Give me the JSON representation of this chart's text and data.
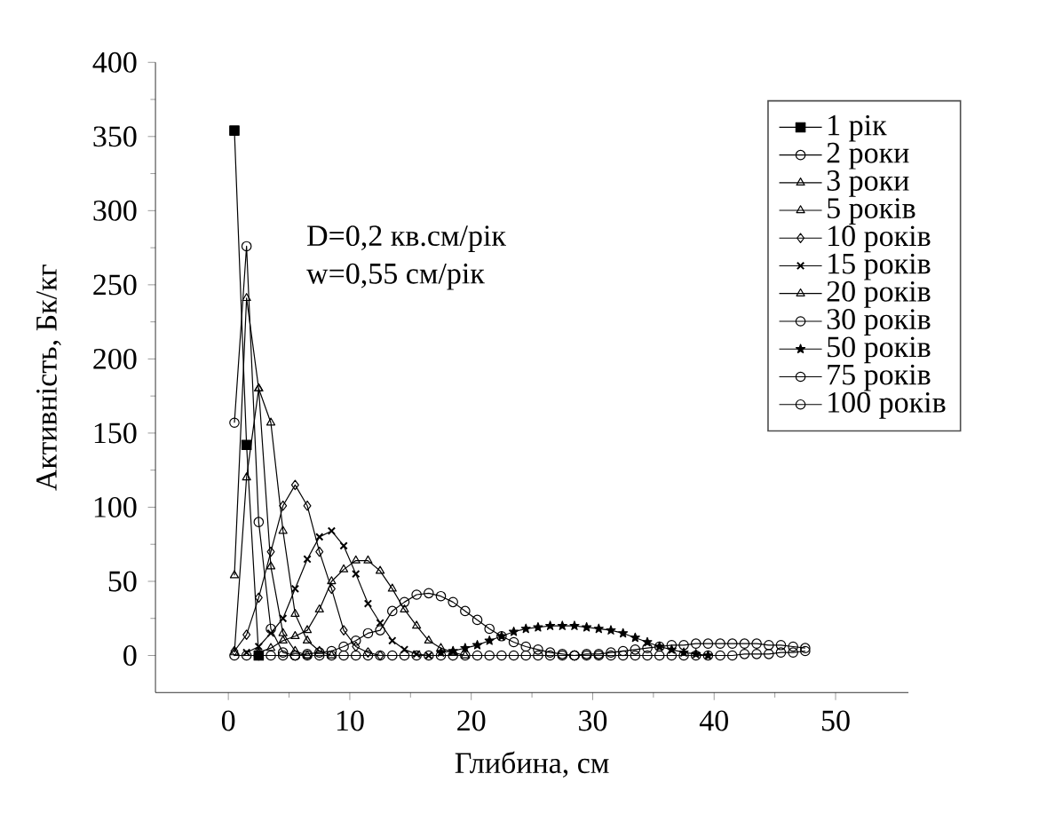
{
  "chart_data": {
    "type": "line",
    "xlabel": "Глибина, см",
    "ylabel": "Активність, Бк/кг",
    "annotations": [
      "D=0,2 кв.см/рік",
      "w=0,55 см/рік"
    ],
    "xlim": [
      -6,
      56
    ],
    "ylim": [
      -25,
      400
    ],
    "xticks": [
      0,
      10,
      20,
      30,
      40,
      50
    ],
    "yticks": [
      0,
      50,
      100,
      150,
      200,
      250,
      300,
      350,
      400
    ],
    "legend": "top right",
    "grid": false,
    "line_style": "solid",
    "x": [
      0.5,
      1.5,
      2.5,
      3.5,
      4.5,
      5.5,
      6.5,
      7.5,
      8.5,
      9.5,
      10.5,
      11.5,
      12.5,
      13.5,
      14.5,
      15.5,
      16.5,
      17.5,
      18.5,
      19.5,
      20.5,
      21.5,
      22.5,
      23.5,
      24.5,
      25.5,
      26.5,
      27.5,
      28.5,
      29.5,
      30.5,
      31.5,
      32.5,
      33.5,
      34.5,
      35.5,
      36.5,
      37.5,
      38.5,
      39.5,
      40.5,
      41.5,
      42.5,
      43.5,
      44.5,
      45.5,
      46.5,
      47.5
    ],
    "series": [
      {
        "name": "1 рік",
        "color": "#000000",
        "marker": "square",
        "values": [
          354,
          142,
          0,
          null,
          null,
          null,
          null,
          null,
          null,
          null,
          null,
          null,
          null,
          null,
          null,
          null,
          null,
          null,
          null,
          null,
          null,
          null,
          null,
          null,
          null,
          null,
          null,
          null,
          null,
          null,
          null,
          null,
          null,
          null,
          null,
          null,
          null,
          null,
          null,
          null,
          null,
          null,
          null,
          null,
          null,
          null,
          null,
          null
        ]
      },
      {
        "name": "2 роки",
        "color": "#000000",
        "marker": "circle",
        "values": [
          157,
          276,
          90,
          18,
          2,
          0,
          null,
          null,
          null,
          null,
          null,
          null,
          null,
          null,
          null,
          null,
          null,
          null,
          null,
          null,
          null,
          null,
          null,
          null,
          null,
          null,
          null,
          null,
          null,
          null,
          null,
          null,
          null,
          null,
          null,
          null,
          null,
          null,
          null,
          null,
          null,
          null,
          null,
          null,
          null,
          null,
          null,
          null
        ]
      },
      {
        "name": "3 роки",
        "color": "#000000",
        "marker": "triangle",
        "values": [
          54,
          241,
          180,
          60,
          15,
          3,
          0,
          null,
          null,
          null,
          null,
          null,
          null,
          null,
          null,
          null,
          null,
          null,
          null,
          null,
          null,
          null,
          null,
          null,
          null,
          null,
          null,
          null,
          null,
          null,
          null,
          null,
          null,
          null,
          null,
          null,
          null,
          null,
          null,
          null,
          null,
          null,
          null,
          null,
          null,
          null,
          null,
          null
        ]
      },
      {
        "name": "5 років",
        "color": "#000000",
        "marker": "triangle",
        "values": [
          2,
          120,
          180,
          157,
          84,
          28,
          10,
          3,
          0,
          null,
          null,
          null,
          null,
          null,
          null,
          null,
          null,
          null,
          null,
          null,
          null,
          null,
          null,
          null,
          null,
          null,
          null,
          null,
          null,
          null,
          null,
          null,
          null,
          null,
          null,
          null,
          null,
          null,
          null,
          null,
          null,
          null,
          null,
          null,
          null,
          null,
          null,
          null
        ]
      },
      {
        "name": "10 років",
        "color": "#000000",
        "marker": "diamond",
        "values": [
          3,
          14,
          39,
          70,
          101,
          115,
          101,
          70,
          45,
          17,
          6,
          2,
          0,
          null,
          null,
          null,
          null,
          null,
          null,
          null,
          null,
          null,
          null,
          null,
          null,
          null,
          null,
          null,
          null,
          null,
          null,
          null,
          null,
          null,
          null,
          null,
          null,
          null,
          null,
          null,
          null,
          null,
          null,
          null,
          null,
          null,
          null,
          null
        ]
      },
      {
        "name": "15 років",
        "color": "#000000",
        "marker": "cross",
        "values": [
          null,
          2,
          6,
          15,
          25,
          45,
          65,
          80,
          84,
          74,
          55,
          35,
          22,
          10,
          4,
          1,
          0,
          null,
          null,
          null,
          null,
          null,
          null,
          null,
          null,
          null,
          null,
          null,
          null,
          null,
          null,
          null,
          null,
          null,
          null,
          null,
          null,
          null,
          null,
          null,
          null,
          null,
          null,
          null,
          null,
          null,
          null,
          null
        ]
      },
      {
        "name": "20 років",
        "color": "#000000",
        "marker": "triangle",
        "values": [
          null,
          null,
          2,
          5,
          10,
          13,
          17,
          31,
          50,
          58,
          64,
          64,
          57,
          45,
          31,
          20,
          10,
          5,
          2,
          0,
          null,
          null,
          null,
          null,
          null,
          null,
          null,
          null,
          null,
          null,
          null,
          null,
          null,
          null,
          null,
          null,
          null,
          null,
          null,
          null,
          null,
          null,
          null,
          null,
          null,
          null,
          null,
          null
        ]
      },
      {
        "name": "30 років",
        "color": "#000000",
        "marker": "circle",
        "values": [
          null,
          null,
          null,
          null,
          null,
          0,
          1,
          2,
          3,
          6,
          10,
          15,
          17,
          30,
          36,
          41,
          42,
          40,
          36,
          30,
          24,
          18,
          13,
          9,
          6,
          4,
          2,
          1,
          0,
          null,
          null,
          null,
          null,
          null,
          null,
          null,
          null,
          null,
          null,
          null,
          null,
          null,
          null,
          null,
          null,
          null,
          null,
          null
        ]
      },
      {
        "name": "50 років",
        "color": "#000000",
        "marker": "star",
        "values": [
          null,
          null,
          null,
          null,
          null,
          null,
          null,
          null,
          null,
          null,
          null,
          null,
          null,
          null,
          null,
          null,
          null,
          2,
          3,
          5,
          7,
          10,
          13,
          16,
          18,
          19,
          20,
          20,
          20,
          19,
          18,
          17,
          15,
          12,
          9,
          6,
          4,
          2,
          1,
          0,
          null,
          null,
          null,
          null,
          null,
          null,
          null,
          null
        ]
      },
      {
        "name": "75 років",
        "color": "#000000",
        "marker": "circle",
        "values": [
          null,
          null,
          null,
          null,
          null,
          null,
          null,
          null,
          null,
          null,
          null,
          null,
          null,
          null,
          null,
          null,
          null,
          null,
          null,
          null,
          null,
          null,
          null,
          null,
          null,
          null,
          null,
          null,
          0,
          1,
          1,
          2,
          3,
          4,
          5,
          6,
          7,
          7,
          8,
          8,
          8,
          8,
          8,
          8,
          7,
          7,
          6,
          5
        ]
      },
      {
        "name": "100 років",
        "color": "#000000",
        "marker": "circle",
        "values": [
          0,
          0,
          0,
          0,
          0,
          0,
          0,
          0,
          0,
          0,
          0,
          0,
          0,
          0,
          0,
          0,
          0,
          0,
          0,
          0,
          0,
          0,
          0,
          0,
          0,
          0,
          0,
          0,
          0,
          0,
          0,
          0,
          0,
          0,
          0,
          0,
          0,
          0,
          0,
          0,
          0,
          0,
          1,
          1,
          1,
          2,
          2,
          3
        ]
      }
    ]
  }
}
